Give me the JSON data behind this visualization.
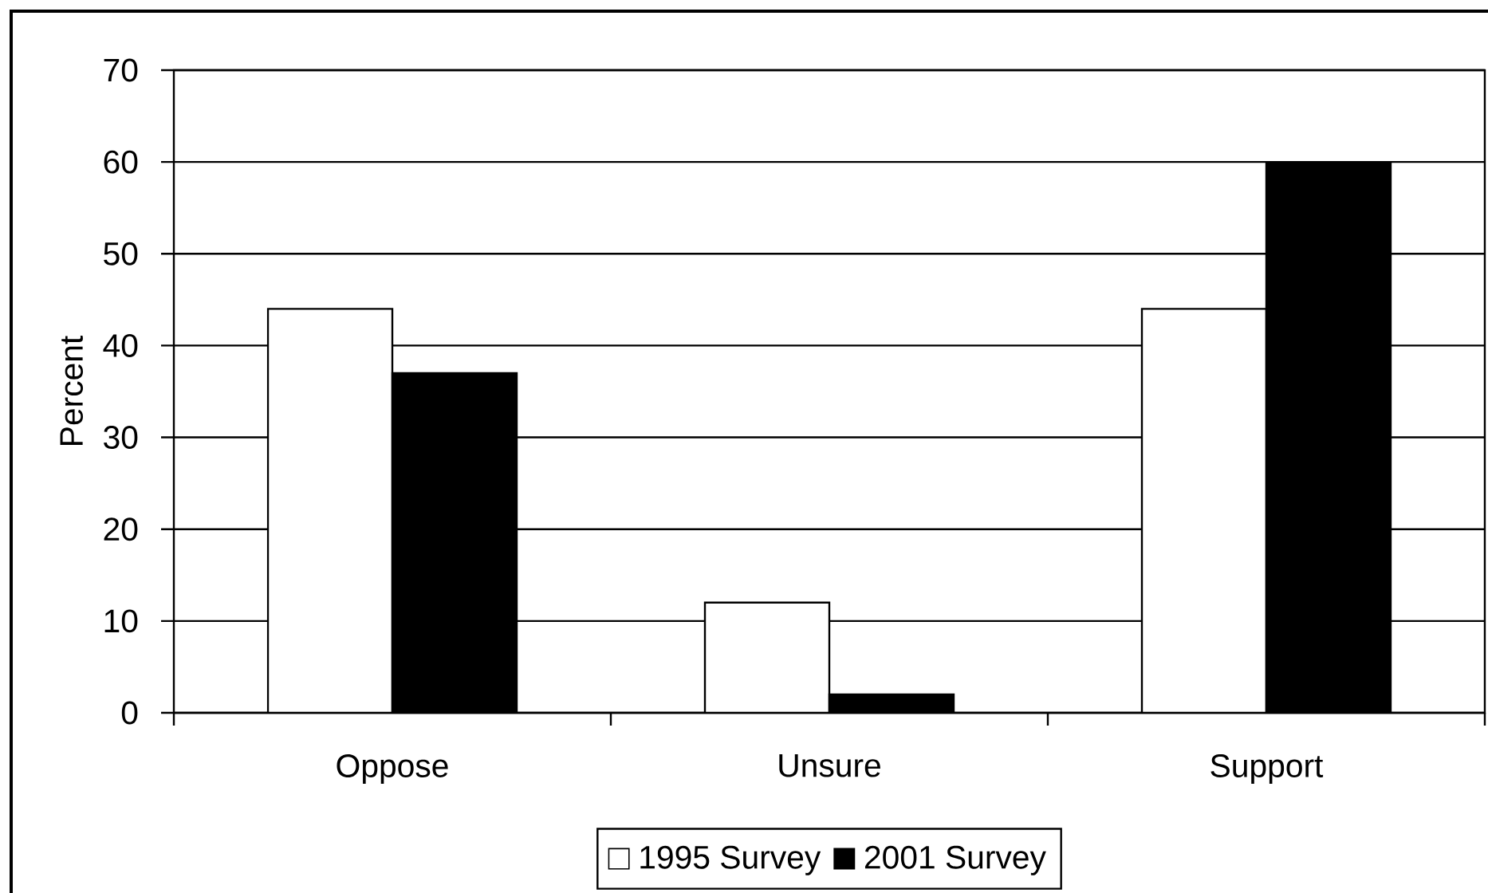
{
  "chart_data": {
    "type": "bar",
    "ylabel": "Percent",
    "categories": [
      "Oppose",
      "Unsure",
      "Support"
    ],
    "series": [
      {
        "name": "1995 Survey",
        "color": "#ffffff",
        "values": [
          44,
          12,
          44
        ]
      },
      {
        "name": "2001 Survey",
        "color": "#000000",
        "values": [
          37,
          2,
          60
        ]
      }
    ],
    "ylim": [
      0,
      70
    ],
    "yticks": [
      0,
      10,
      20,
      30,
      40,
      50,
      60,
      70
    ],
    "grid": "y",
    "legend": "bottom"
  }
}
